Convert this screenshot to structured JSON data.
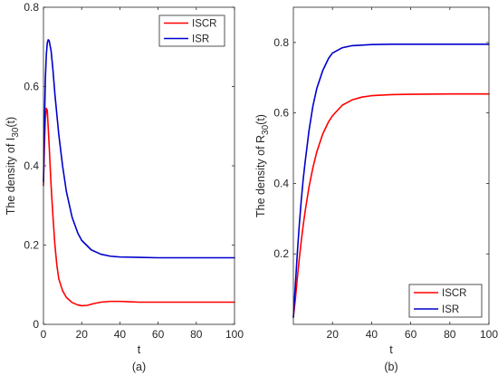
{
  "chart_data": [
    {
      "type": "line",
      "panel_label": "(a)",
      "xlabel": "t",
      "ylabel": "The density of I",
      "ylabel_sub": "30",
      "ylabel_tail": "(t)",
      "xlim": [
        0,
        100
      ],
      "ylim": [
        0,
        0.8
      ],
      "xticks": [
        0,
        20,
        40,
        60,
        80,
        100
      ],
      "yticks": [
        0,
        0.2,
        0.4,
        0.6,
        0.8
      ],
      "xtick_labels": [
        "0",
        "20",
        "40",
        "60",
        "80",
        "100"
      ],
      "ytick_labels": [
        "0",
        "0.2",
        "0.4",
        "0.6",
        "0.8"
      ],
      "grid": false,
      "legend_position": "top-right",
      "series": [
        {
          "name": "ISCR",
          "color": "#ff0000",
          "points": [
            [
              0,
              0.35
            ],
            [
              0.5,
              0.45
            ],
            [
              1,
              0.52
            ],
            [
              1.5,
              0.545
            ],
            [
              2,
              0.54
            ],
            [
              3,
              0.45
            ],
            [
              4,
              0.35
            ],
            [
              5,
              0.27
            ],
            [
              6,
              0.2
            ],
            [
              7,
              0.15
            ],
            [
              8,
              0.115
            ],
            [
              10,
              0.085
            ],
            [
              12,
              0.068
            ],
            [
              15,
              0.055
            ],
            [
              18,
              0.049
            ],
            [
              20,
              0.047
            ],
            [
              23,
              0.048
            ],
            [
              26,
              0.052
            ],
            [
              30,
              0.056
            ],
            [
              35,
              0.058
            ],
            [
              40,
              0.058
            ],
            [
              45,
              0.057
            ],
            [
              50,
              0.056
            ],
            [
              60,
              0.056
            ],
            [
              80,
              0.056
            ],
            [
              100,
              0.056
            ]
          ]
        },
        {
          "name": "ISR",
          "color": "#0000cc",
          "points": [
            [
              0,
              0.36
            ],
            [
              0.5,
              0.5
            ],
            [
              1,
              0.62
            ],
            [
              1.5,
              0.68
            ],
            [
              2,
              0.71
            ],
            [
              2.5,
              0.718
            ],
            [
              3,
              0.715
            ],
            [
              4,
              0.69
            ],
            [
              5,
              0.64
            ],
            [
              6,
              0.58
            ],
            [
              8,
              0.48
            ],
            [
              10,
              0.4
            ],
            [
              12,
              0.335
            ],
            [
              15,
              0.27
            ],
            [
              18,
              0.23
            ],
            [
              20,
              0.212
            ],
            [
              25,
              0.188
            ],
            [
              30,
              0.177
            ],
            [
              35,
              0.172
            ],
            [
              40,
              0.17
            ],
            [
              50,
              0.169
            ],
            [
              60,
              0.168
            ],
            [
              80,
              0.168
            ],
            [
              100,
              0.168
            ]
          ]
        }
      ]
    },
    {
      "type": "line",
      "panel_label": "(b)",
      "xlabel": "t",
      "ylabel": "The density of R",
      "ylabel_sub": "30",
      "ylabel_tail": "(t)",
      "xlim": [
        0,
        100
      ],
      "ylim": [
        0,
        0.9
      ],
      "xticks": [
        20,
        40,
        60,
        80,
        100
      ],
      "yticks": [
        0.2,
        0.4,
        0.6,
        0.8
      ],
      "xtick_labels": [
        "20",
        "40",
        "60",
        "80",
        "100"
      ],
      "ytick_labels": [
        "0.2",
        "0.4",
        "0.6",
        "0.8"
      ],
      "grid": false,
      "legend_position": "bottom-right",
      "series": [
        {
          "name": "ISCR",
          "color": "#ff0000",
          "points": [
            [
              0,
              0.02
            ],
            [
              1,
              0.07
            ],
            [
              2,
              0.13
            ],
            [
              3,
              0.185
            ],
            [
              4,
              0.235
            ],
            [
              5,
              0.28
            ],
            [
              6,
              0.32
            ],
            [
              8,
              0.39
            ],
            [
              10,
              0.445
            ],
            [
              12,
              0.49
            ],
            [
              15,
              0.54
            ],
            [
              18,
              0.575
            ],
            [
              20,
              0.592
            ],
            [
              25,
              0.622
            ],
            [
              30,
              0.637
            ],
            [
              35,
              0.645
            ],
            [
              40,
              0.649
            ],
            [
              50,
              0.652
            ],
            [
              60,
              0.653
            ],
            [
              80,
              0.654
            ],
            [
              100,
              0.654
            ]
          ]
        },
        {
          "name": "ISR",
          "color": "#0000cc",
          "points": [
            [
              0,
              0.02
            ],
            [
              1,
              0.11
            ],
            [
              2,
              0.2
            ],
            [
              3,
              0.28
            ],
            [
              4,
              0.35
            ],
            [
              5,
              0.41
            ],
            [
              6,
              0.46
            ],
            [
              8,
              0.55
            ],
            [
              10,
              0.62
            ],
            [
              12,
              0.67
            ],
            [
              15,
              0.72
            ],
            [
              18,
              0.755
            ],
            [
              20,
              0.77
            ],
            [
              25,
              0.785
            ],
            [
              30,
              0.791
            ],
            [
              40,
              0.794
            ],
            [
              50,
              0.795
            ],
            [
              60,
              0.795
            ],
            [
              80,
              0.795
            ],
            [
              100,
              0.795
            ]
          ]
        }
      ]
    }
  ]
}
